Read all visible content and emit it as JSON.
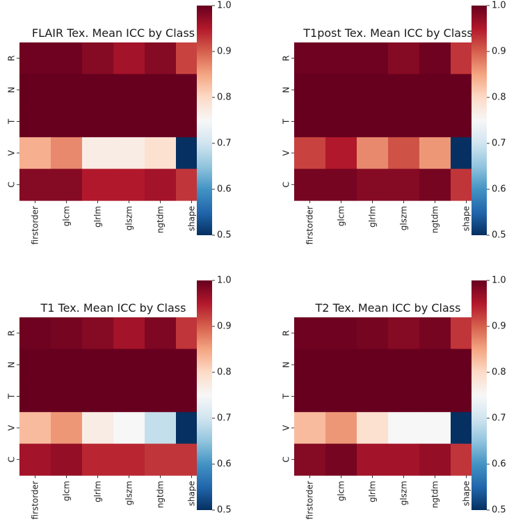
{
  "chart_data": [
    {
      "type": "heatmap",
      "title": "FLAIR Tex. Mean ICC by Class",
      "x_categories": [
        "firstorder",
        "glcm",
        "glrlm",
        "glszm",
        "ngtdm",
        "shape"
      ],
      "y_categories": [
        "R",
        "N",
        "T",
        "V",
        "C"
      ],
      "values": [
        [
          0.995,
          0.995,
          0.98,
          0.96,
          0.98,
          0.92
        ],
        [
          1.0,
          1.0,
          1.0,
          1.0,
          1.0,
          1.0
        ],
        [
          1.0,
          1.0,
          1.0,
          1.0,
          1.0,
          1.0
        ],
        [
          0.84,
          0.87,
          0.77,
          0.77,
          0.79,
          0.5
        ],
        [
          0.98,
          0.98,
          0.95,
          0.95,
          0.96,
          0.93
        ]
      ],
      "colorbar": {
        "min": 0.5,
        "max": 1.0,
        "ticks": [
          "0.5",
          "0.6",
          "0.7",
          "0.8",
          "0.9",
          "1.0"
        ],
        "colormap": "RdBu_r"
      }
    },
    {
      "type": "heatmap",
      "title": "T1post Tex. Mean ICC by Class",
      "x_categories": [
        "firstorder",
        "glcm",
        "glrlm",
        "glszm",
        "ngtdm",
        "shape"
      ],
      "y_categories": [
        "R",
        "N",
        "T",
        "V",
        "C"
      ],
      "values": [
        [
          0.995,
          0.995,
          0.995,
          0.98,
          0.995,
          0.93
        ],
        [
          1.0,
          1.0,
          1.0,
          1.0,
          1.0,
          1.0
        ],
        [
          1.0,
          1.0,
          1.0,
          1.0,
          1.0,
          1.0
        ],
        [
          0.92,
          0.95,
          0.87,
          0.91,
          0.86,
          0.5
        ],
        [
          0.99,
          0.99,
          0.98,
          0.98,
          0.99,
          0.93
        ]
      ],
      "colorbar": {
        "min": 0.5,
        "max": 1.0,
        "ticks": [
          "0.5",
          "0.6",
          "0.7",
          "0.8",
          "0.9",
          "1.0"
        ],
        "colormap": "RdBu_r"
      }
    },
    {
      "type": "heatmap",
      "title": "T1 Tex. Mean ICC by Class",
      "x_categories": [
        "firstorder",
        "glcm",
        "glrlm",
        "glszm",
        "ngtdm",
        "shape"
      ],
      "y_categories": [
        "R",
        "N",
        "T",
        "V",
        "C"
      ],
      "values": [
        [
          0.995,
          0.99,
          0.98,
          0.96,
          0.985,
          0.93
        ],
        [
          1.0,
          1.0,
          1.0,
          1.0,
          1.0,
          1.0
        ],
        [
          1.0,
          1.0,
          1.0,
          1.0,
          1.0,
          1.0
        ],
        [
          0.83,
          0.86,
          0.77,
          0.75,
          0.69,
          0.5
        ],
        [
          0.96,
          0.97,
          0.94,
          0.94,
          0.93,
          0.93
        ]
      ],
      "colorbar": {
        "min": 0.5,
        "max": 1.0,
        "ticks": [
          "0.5",
          "0.6",
          "0.7",
          "0.8",
          "0.9",
          "1.0"
        ],
        "colormap": "RdBu_r"
      }
    },
    {
      "type": "heatmap",
      "title": "T2 Tex. Mean ICC by Class",
      "x_categories": [
        "firstorder",
        "glcm",
        "glrlm",
        "glszm",
        "ngtdm",
        "shape"
      ],
      "y_categories": [
        "R",
        "N",
        "T",
        "V",
        "C"
      ],
      "values": [
        [
          0.995,
          0.995,
          0.99,
          0.98,
          0.99,
          0.93
        ],
        [
          1.0,
          1.0,
          1.0,
          1.0,
          1.0,
          1.0
        ],
        [
          1.0,
          1.0,
          1.0,
          1.0,
          1.0,
          1.0
        ],
        [
          0.83,
          0.86,
          0.79,
          0.75,
          0.75,
          0.5
        ],
        [
          0.98,
          0.99,
          0.96,
          0.96,
          0.97,
          0.93
        ]
      ],
      "colorbar": {
        "min": 0.5,
        "max": 1.0,
        "ticks": [
          "0.5",
          "0.6",
          "0.7",
          "0.8",
          "0.9",
          "1.0"
        ],
        "colormap": "RdBu_r"
      }
    }
  ]
}
